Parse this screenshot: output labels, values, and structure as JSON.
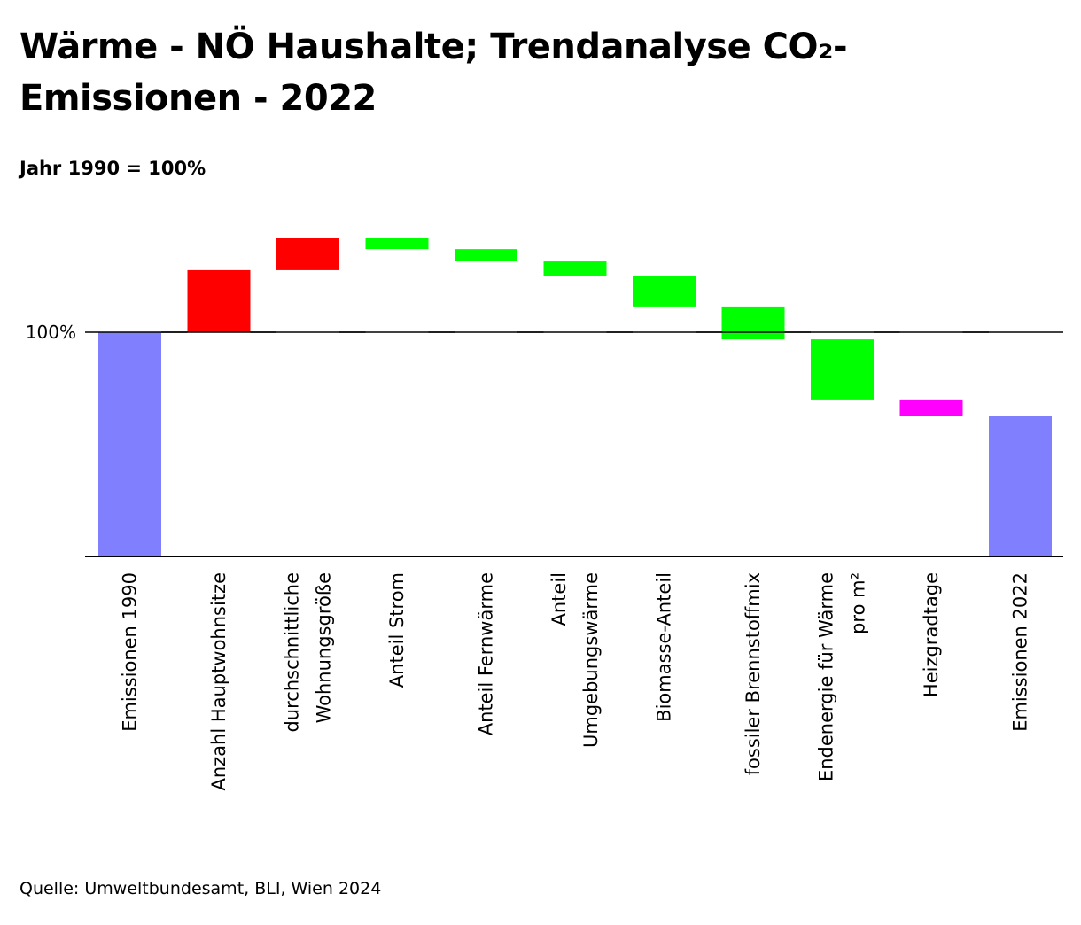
{
  "title": "Wärme - NÖ Haushalte; Trendanalyse CO₂-Emissionen - 2022",
  "subtitle": "Jahr 1990 = 100%",
  "source": "Quelle: Umweltbundesamt, BLI, Wien 2024",
  "colors": {
    "total": "#8080ff",
    "increase": "#ff0000",
    "decrease": "#00ff00",
    "weather": "#ff00ff"
  },
  "chart_data": {
    "type": "bar",
    "subtype": "waterfall",
    "unit": "%",
    "baseline_label": "100%",
    "baseline_value": 100,
    "categories": [
      [
        "Emissionen 1990"
      ],
      [
        "Anzahl Hauptwohnsitze"
      ],
      [
        "durchschnittliche",
        "Wohnungsgröße"
      ],
      [
        "Anteil Strom"
      ],
      [
        "Anteil Fernwärme"
      ],
      [
        "Anteil",
        "Umgebungswärme"
      ],
      [
        "Biomasse-Anteil"
      ],
      [
        "fossiler Brennstoffmix"
      ],
      [
        "Endenergie für Wärme",
        "pro m²"
      ],
      [
        "Heizgradtage"
      ],
      [
        "Emissionen 2022"
      ]
    ],
    "steps": [
      {
        "kind": "total",
        "start": 0,
        "end": 100
      },
      {
        "kind": "increase",
        "start": 100,
        "end": 127.7
      },
      {
        "kind": "increase",
        "start": 127.7,
        "end": 141.9
      },
      {
        "kind": "decrease",
        "start": 141.9,
        "end": 137.1
      },
      {
        "kind": "decrease",
        "start": 137.1,
        "end": 131.6
      },
      {
        "kind": "decrease",
        "start": 131.6,
        "end": 125.3
      },
      {
        "kind": "decrease",
        "start": 125.3,
        "end": 111.5
      },
      {
        "kind": "decrease",
        "start": 111.5,
        "end": 96.8
      },
      {
        "kind": "decrease",
        "start": 96.8,
        "end": 70.0
      },
      {
        "kind": "weather",
        "start": 70.0,
        "end": 62.8
      },
      {
        "kind": "total",
        "start": 0,
        "end": 62.8
      }
    ],
    "ylim": [
      0,
      150
    ],
    "grid": false,
    "legend": "none"
  }
}
